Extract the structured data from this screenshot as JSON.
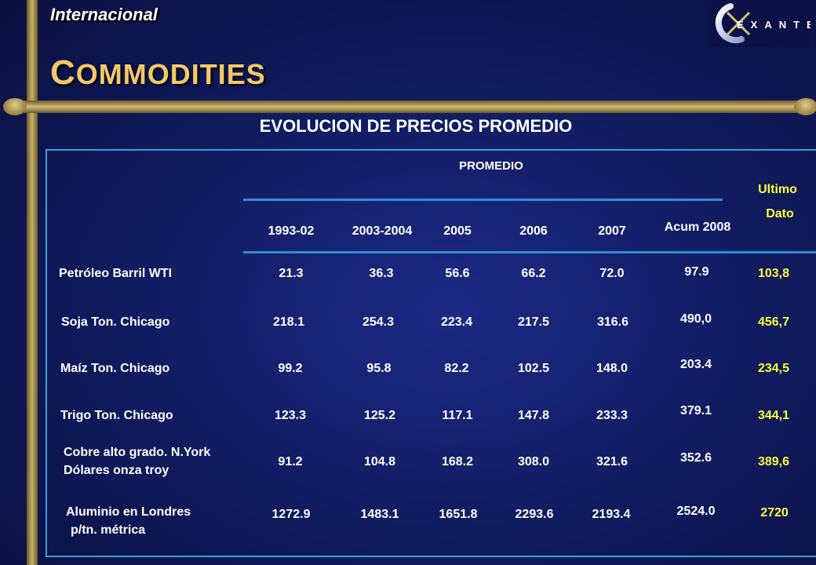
{
  "header": {
    "section": "Internacional",
    "title_first": "C",
    "title_rest": "OMMODITIES",
    "subtitle": "EVOLUCION DE PRECIOS PROMEDIO",
    "logo_text": "EXANTE"
  },
  "table": {
    "group_header": "PROMEDIO",
    "columns": [
      "1993-02",
      "2003-2004",
      "2005",
      "2006",
      "2007"
    ],
    "acum_header": "Acum 2008",
    "last_header_1": "Ultimo",
    "last_header_2": "Dato",
    "rows": [
      {
        "label_1": "Petróleo Barril WTI",
        "label_2": "",
        "values": [
          "21.3",
          "36.3",
          "56.6",
          "66.2",
          "72.0"
        ],
        "acum": "97.9",
        "last": "103,8"
      },
      {
        "label_1": "Soja Ton. Chicago",
        "label_2": "",
        "values": [
          "218.1",
          "254.3",
          "223.4",
          "217.5",
          "316.6"
        ],
        "acum": "490,0",
        "last": "456,7"
      },
      {
        "label_1": "Maíz Ton. Chicago",
        "label_2": "",
        "values": [
          "99.2",
          "95.8",
          "82.2",
          "102.5",
          "148.0"
        ],
        "acum": "203.4",
        "last": "234,5"
      },
      {
        "label_1": "Trigo Ton. Chicago",
        "label_2": "",
        "values": [
          "123.3",
          "125.2",
          "117.1",
          "147.8",
          "233.3"
        ],
        "acum": "379.1",
        "last": "344,1"
      },
      {
        "label_1": "Cobre alto grado. N.York",
        "label_2": "Dólares onza troy",
        "values": [
          "91.2",
          "104.8",
          "168.2",
          "308.0",
          "321.6"
        ],
        "acum": "352.6",
        "last": "389,6"
      },
      {
        "label_1": "Aluminio en Londres",
        "label_2": "p/tn. métrica",
        "values": [
          "1272.9",
          "1483.1",
          "1651.8",
          "2293.6",
          "2193.4"
        ],
        "acum": "2524.0",
        "last": "2720"
      }
    ]
  },
  "colors": {
    "background": "#101a5c",
    "title": "#f2c86a",
    "accent_yellow": "#ffff33",
    "frame_gold": "#c9b06a",
    "panel_border": "#3aa0d8"
  }
}
